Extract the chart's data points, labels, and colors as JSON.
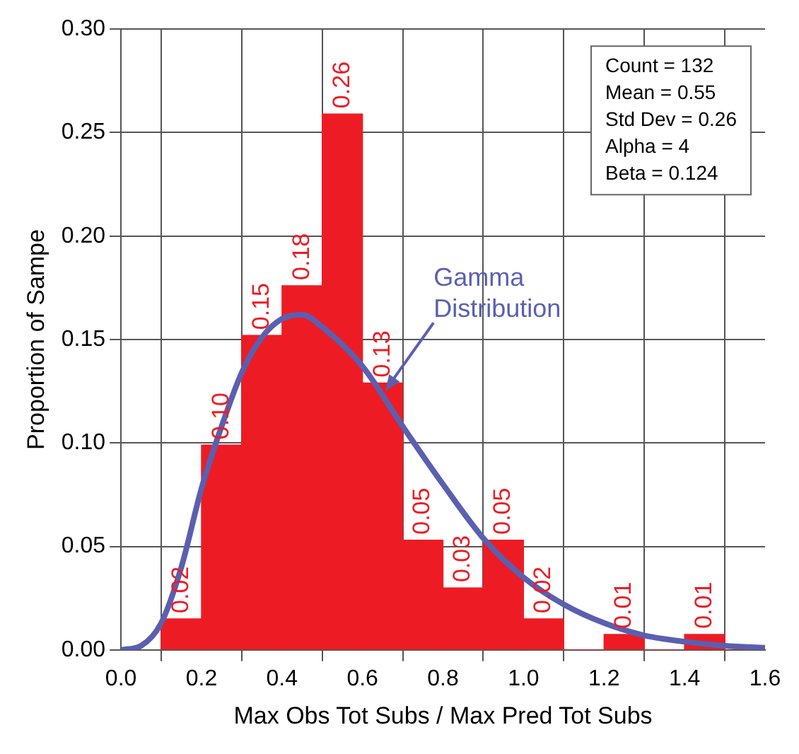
{
  "chart_data": {
    "type": "histogram",
    "xlabel": "Max Obs Tot Subs / Max Pred Tot Subs",
    "ylabel": "Proportion of Sampe",
    "bins": [
      0.1,
      0.2,
      0.3,
      0.4,
      0.5,
      0.6,
      0.7,
      0.8,
      0.9,
      1.0,
      1.1,
      1.2,
      1.3,
      1.4,
      1.5,
      1.6
    ],
    "values": [
      0.015,
      0.099,
      0.152,
      0.176,
      0.259,
      0.129,
      0.053,
      0.03,
      0.053,
      0.015,
      0,
      0.0075,
      0,
      0.0075,
      0
    ],
    "value_labels": [
      "0.02",
      "0.10",
      "0.15",
      "0.18",
      "0.26",
      "0.13",
      "0.05",
      "0.03",
      "0.05",
      "0.02",
      null,
      "0.01",
      null,
      "0.01",
      null
    ],
    "color": "#ed1c24",
    "series": [
      {
        "type": "line",
        "name": "Gamma Distribution",
        "color": "#5b5fb0",
        "x": [
          0,
          0.05,
          0.1,
          0.15,
          0.2,
          0.25,
          0.3,
          0.35,
          0.4,
          0.45,
          0.5,
          0.6,
          0.7,
          0.8,
          0.9,
          1.0,
          1.1,
          1.2,
          1.3,
          1.4,
          1.5,
          1.6
        ],
        "values": [
          0,
          0.002,
          0.013,
          0.04,
          0.078,
          0.108,
          0.134,
          0.151,
          0.16,
          0.162,
          0.156,
          0.137,
          0.108,
          0.08,
          0.054,
          0.035,
          0.022,
          0.013,
          0.007,
          0.004,
          0.002,
          0.001
        ]
      }
    ],
    "annotations": [
      "Count = 132",
      "Mean = 0.55",
      "Std Dev = 0.26",
      "Alpha = 4",
      "Beta = 0.124"
    ],
    "xlim": [
      0,
      1.6
    ],
    "xticks": [
      {
        "value": 0,
        "label": "0.0"
      },
      {
        "value": 0.2,
        "label": "0.2"
      },
      {
        "value": 0.4,
        "label": "0.4"
      },
      {
        "value": 0.6,
        "label": "0.6"
      },
      {
        "value": 0.8,
        "label": "0.8"
      },
      {
        "value": 1.0,
        "label": "1.0"
      },
      {
        "value": 1.2,
        "label": "1.2"
      },
      {
        "value": 1.4,
        "label": "1.4"
      },
      {
        "value": 1.6,
        "label": "1.6"
      }
    ],
    "ylim": [
      0,
      0.3
    ],
    "yticks": [
      {
        "value": 0,
        "label": "0.00"
      },
      {
        "value": 0.05,
        "label": "0.05"
      },
      {
        "value": 0.1,
        "label": "0.10"
      },
      {
        "value": 0.15,
        "label": "0.15"
      },
      {
        "value": 0.2,
        "label": "0.20"
      },
      {
        "value": 0.25,
        "label": "0.25"
      },
      {
        "value": 0.3,
        "label": "0.30"
      }
    ],
    "grid": true,
    "legend": false,
    "marker": "none",
    "line_style": "solid"
  }
}
